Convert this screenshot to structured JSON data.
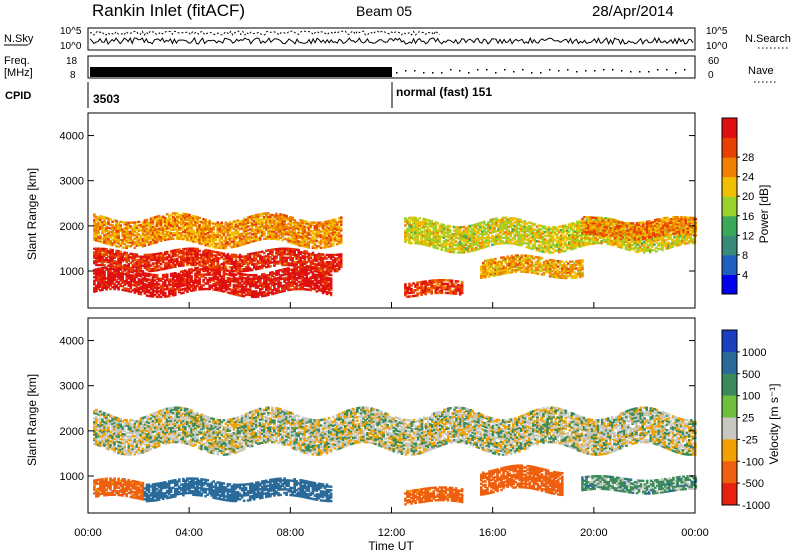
{
  "header": {
    "title": "Rankin Inlet (fitACF)",
    "beam": "Beam 05",
    "date": "28/Apr/2014"
  },
  "aux_panels": {
    "nsky_label": "N.Sky",
    "nsearch_label": "N.Search",
    "nsky_ticks": [
      "10^5",
      "10^0"
    ],
    "nsearch_ticks": [
      "10^5",
      "10^0"
    ],
    "freq_label_line1": "Freq.",
    "freq_label_line2": "[MHz]",
    "freq_ticks": [
      "18",
      "8"
    ],
    "nave_label": "Nave",
    "nave_ticks": [
      "60",
      "0"
    ],
    "cpid_label": "CPID",
    "cpid_value_1": "3503",
    "cpid_value_2": "normal (fast) 151"
  },
  "axes": {
    "x_ticks": [
      "00:00",
      "04:00",
      "08:00",
      "12:00",
      "16:00",
      "20:00",
      "00:00"
    ],
    "x_label": "Time UT",
    "y_label": "Slant Range [km]",
    "y_ticks": [
      "1000",
      "2000",
      "3000",
      "4000"
    ]
  },
  "colorbars": {
    "power": {
      "label": "Power [dB]",
      "ticks": [
        "4",
        "8",
        "12",
        "16",
        "20",
        "24",
        "28"
      ],
      "colors": [
        "#0000ee",
        "#1f5fbf",
        "#3a8a7a",
        "#3aaa5a",
        "#9ad12a",
        "#f0c000",
        "#f08000",
        "#e84000",
        "#e01010"
      ]
    },
    "velocity": {
      "label": "Velocity [m s⁻¹]",
      "ticks": [
        "1000",
        "500",
        "100",
        "25",
        "-25",
        "-100",
        "-500",
        "-1000"
      ],
      "colors": [
        "#1a3fbf",
        "#2a6a9a",
        "#3a8a5a",
        "#70c040",
        "#c8c8c0",
        "#f0a000",
        "#ee6010",
        "#e82010"
      ]
    }
  },
  "chart_data": [
    {
      "type": "heatmap",
      "name": "Power",
      "x_range_hours": [
        0,
        24
      ],
      "y_range_km": [
        180,
        4500
      ],
      "colorbar_range_db": [
        0,
        30
      ],
      "echo_bands": [
        {
          "t_start": 0.2,
          "t_end": 9.6,
          "range_center_km": 750,
          "range_halfwidth_km": 250,
          "power_db": 29
        },
        {
          "t_start": 0.2,
          "t_end": 10.0,
          "range_center_km": 1250,
          "range_halfwidth_km": 200,
          "power_db": 27
        },
        {
          "t_start": 0.2,
          "t_end": 10.0,
          "range_center_km": 1900,
          "range_halfwidth_km": 300,
          "power_db": 21
        },
        {
          "t_start": 12.5,
          "t_end": 14.8,
          "range_center_km": 600,
          "range_halfwidth_km": 150,
          "power_db": 26
        },
        {
          "t_start": 15.5,
          "t_end": 19.5,
          "range_center_km": 1100,
          "range_halfwidth_km": 200,
          "power_db": 20
        },
        {
          "t_start": 12.5,
          "t_end": 24.0,
          "range_center_km": 1800,
          "range_halfwidth_km": 300,
          "power_db": 17
        },
        {
          "t_start": 19.5,
          "t_end": 24.0,
          "range_center_km": 1950,
          "range_halfwidth_km": 200,
          "power_db": 22
        }
      ]
    },
    {
      "type": "heatmap",
      "name": "Velocity",
      "x_range_hours": [
        0,
        24
      ],
      "y_range_km": [
        180,
        4500
      ],
      "colorbar_range_ms": [
        -1000,
        1000
      ],
      "echo_bands": [
        {
          "t_start": 0.2,
          "t_end": 2.2,
          "range_center_km": 700,
          "range_halfwidth_km": 200,
          "velocity_ms": -150
        },
        {
          "t_start": 2.2,
          "t_end": 9.6,
          "range_center_km": 700,
          "range_halfwidth_km": 200,
          "velocity_ms": 250
        },
        {
          "t_start": 0.2,
          "t_end": 24.0,
          "range_center_km": 2000,
          "range_halfwidth_km": 400,
          "velocity_ms": 0
        },
        {
          "t_start": 12.5,
          "t_end": 14.8,
          "range_center_km": 550,
          "range_halfwidth_km": 150,
          "velocity_ms": -150
        },
        {
          "t_start": 15.5,
          "t_end": 18.7,
          "range_center_km": 900,
          "range_halfwidth_km": 250,
          "velocity_ms": -200
        },
        {
          "t_start": 19.5,
          "t_end": 24.0,
          "range_center_km": 800,
          "range_halfwidth_km": 150,
          "velocity_ms": 50
        }
      ]
    }
  ]
}
